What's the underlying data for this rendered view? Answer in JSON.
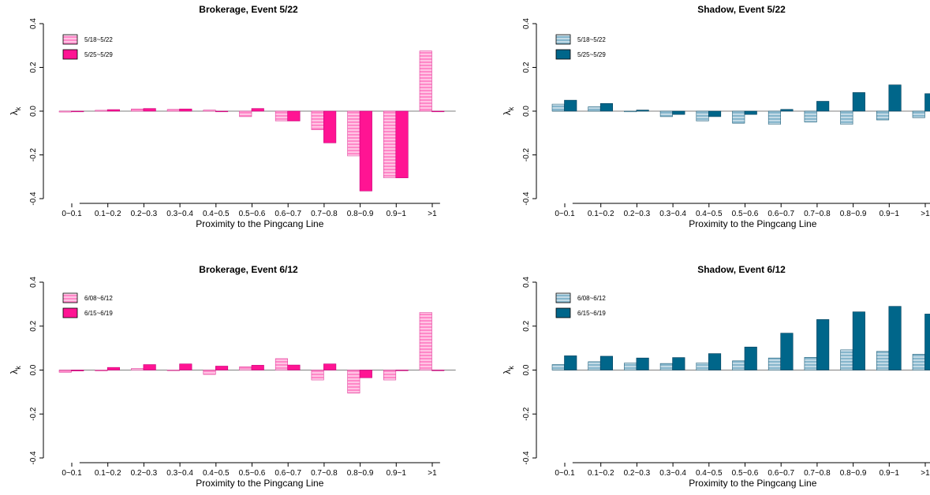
{
  "chart_data": [
    {
      "type": "bar",
      "title": "Brokerage, Event 5/22",
      "xlabel": "Proximity to the Pingcang Line",
      "ylabel": "λ",
      "ylabel_subscript": "k",
      "ylim": [
        -0.4,
        0.4
      ],
      "yticks": [
        "-0.4",
        "-0.2",
        "0.0",
        "0.2",
        "0.4"
      ],
      "legend_position": "top-left",
      "categories": [
        "0~0.1",
        "0.1~0.2",
        "0.2~0.3",
        "0.3~0.4",
        "0.4~0.5",
        "0.5~0.6",
        "0.6~0.7",
        "0.7~0.8",
        "0.8~0.9",
        "0.9~1",
        ">1"
      ],
      "series": [
        {
          "name": "5/18~5/22",
          "style": "hatched",
          "color": "#FF69B4",
          "values": [
            -0.004,
            0.004,
            0.01,
            0.008,
            0.005,
            -0.025,
            -0.045,
            -0.085,
            -0.205,
            -0.305,
            0.275
          ]
        },
        {
          "name": "5/25~5/29",
          "style": "solid",
          "color": "#FF1493",
          "values": [
            -0.003,
            0.007,
            0.012,
            0.01,
            -0.002,
            0.012,
            -0.045,
            -0.145,
            -0.365,
            -0.305,
            0.0
          ]
        }
      ]
    },
    {
      "type": "bar",
      "title": "Shadow, Event 5/22",
      "xlabel": "Proximity to the Pingcang Line",
      "ylabel": "λ",
      "ylabel_subscript": "k",
      "ylim": [
        -0.4,
        0.4
      ],
      "yticks": [
        "-0.4",
        "-0.2",
        "0.0",
        "0.2",
        "0.4"
      ],
      "legend_position": "top-left",
      "categories": [
        "0~0.1",
        "0.1~0.2",
        "0.2~0.3",
        "0.3~0.4",
        "0.4~0.5",
        "0.5~0.6",
        "0.6~0.7",
        "0.7~0.8",
        "0.8~0.9",
        "0.9~1",
        ">1"
      ],
      "series": [
        {
          "name": "5/18~5/22",
          "style": "hatched",
          "color": "#8FBFD3",
          "values": [
            0.032,
            0.02,
            0.0,
            -0.025,
            -0.045,
            -0.055,
            -0.06,
            -0.05,
            -0.06,
            -0.04,
            -0.03
          ]
        },
        {
          "name": "5/25~5/29",
          "style": "solid",
          "color": "#00668A",
          "values": [
            0.05,
            0.035,
            0.005,
            -0.015,
            -0.025,
            -0.015,
            0.008,
            0.045,
            0.085,
            0.12,
            0.08
          ]
        }
      ]
    },
    {
      "type": "bar",
      "title": "Brokerage, Event 6/12",
      "xlabel": "Proximity to the Pingcang Line",
      "ylabel": "λ",
      "ylabel_subscript": "k",
      "ylim": [
        -0.4,
        0.4
      ],
      "yticks": [
        "-0.4",
        "-0.2",
        "0.0",
        "0.2",
        "0.4"
      ],
      "legend_position": "top-left",
      "categories": [
        "0~0.1",
        "0.1~0.2",
        "0.2~0.3",
        "0.3~0.4",
        "0.4~0.5",
        "0.5~0.6",
        "0.6~0.7",
        "0.7~0.8",
        "0.8~0.9",
        "0.9~1",
        ">1"
      ],
      "series": [
        {
          "name": "6/08~6/12",
          "style": "hatched",
          "color": "#FF69B4",
          "values": [
            -0.01,
            -0.004,
            0.007,
            0.0,
            -0.02,
            0.015,
            0.052,
            -0.045,
            -0.105,
            -0.045,
            0.262
          ]
        },
        {
          "name": "6/15~6/19",
          "style": "solid",
          "color": "#FF1493",
          "values": [
            -0.004,
            0.012,
            0.025,
            0.028,
            0.018,
            0.022,
            0.023,
            0.028,
            -0.035,
            0.0,
            0.0
          ]
        }
      ]
    },
    {
      "type": "bar",
      "title": "Shadow, Event 6/12",
      "xlabel": "Proximity to the Pingcang Line",
      "ylabel": "λ",
      "ylabel_subscript": "k",
      "ylim": [
        -0.4,
        0.4
      ],
      "yticks": [
        "-0.4",
        "-0.2",
        "0.0",
        "0.2",
        "0.4"
      ],
      "legend_position": "top-left",
      "categories": [
        "0~0.1",
        "0.1~0.2",
        "0.2~0.3",
        "0.3~0.4",
        "0.4~0.5",
        "0.5~0.6",
        "0.6~0.7",
        "0.7~0.8",
        "0.8~0.9",
        "0.9~1",
        ">1"
      ],
      "series": [
        {
          "name": "6/08~6/12",
          "style": "hatched",
          "color": "#8FBFD3",
          "values": [
            0.025,
            0.038,
            0.032,
            0.03,
            0.033,
            0.042,
            0.055,
            0.058,
            0.092,
            0.085,
            0.072
          ]
        },
        {
          "name": "6/15~6/19",
          "style": "solid",
          "color": "#00668A",
          "values": [
            0.065,
            0.063,
            0.055,
            0.057,
            0.075,
            0.105,
            0.168,
            0.23,
            0.265,
            0.29,
            0.255
          ]
        }
      ]
    }
  ]
}
